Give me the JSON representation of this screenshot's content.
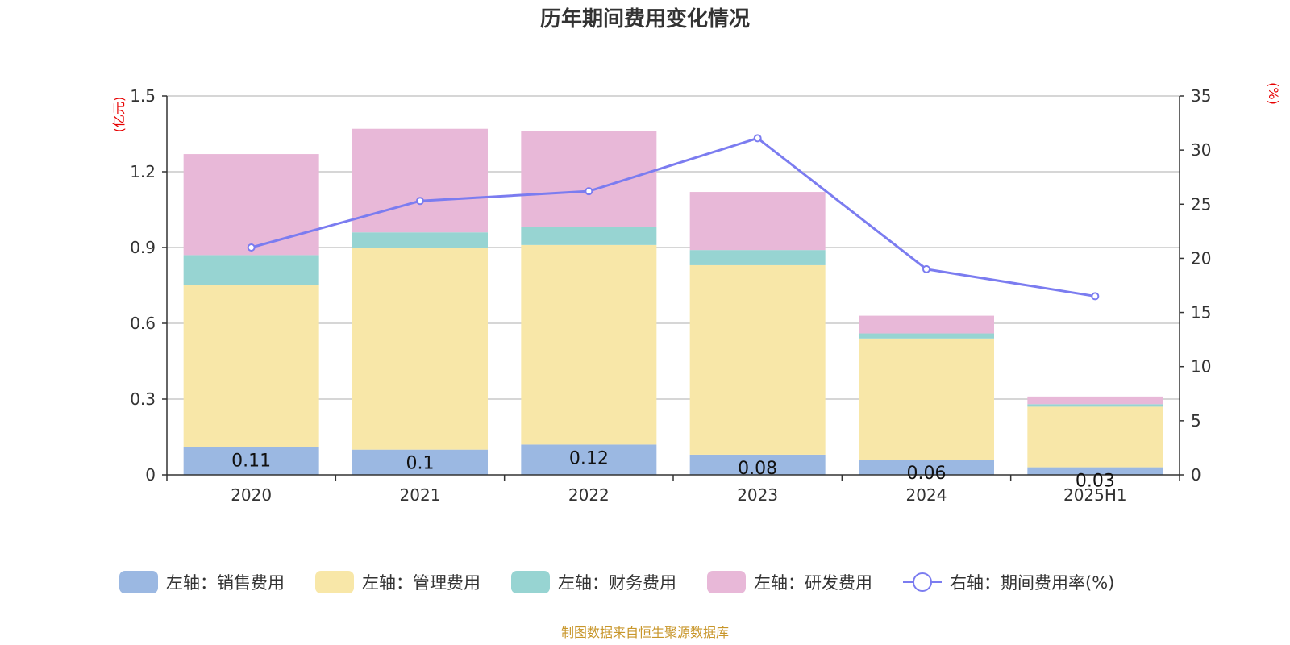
{
  "chart_data": {
    "type": "bar",
    "title": "历年期间费用变化情况",
    "categories": [
      "2020",
      "2021",
      "2022",
      "2023",
      "2024",
      "2025H1"
    ],
    "left_axis": {
      "unit": "(亿元)",
      "ylim": [
        0,
        1.5
      ],
      "ticks": [
        "0",
        "0.3",
        "0.6",
        "0.9",
        "1.2",
        "1.5"
      ]
    },
    "right_axis": {
      "unit": "(%)",
      "ylim": [
        0,
        35
      ],
      "ticks": [
        "0",
        "5",
        "10",
        "15",
        "20",
        "25",
        "30",
        "35"
      ]
    },
    "stacked": true,
    "series": [
      {
        "name": "左轴：销售费用",
        "color": "#9bb8e2",
        "values": [
          0.11,
          0.1,
          0.12,
          0.08,
          0.06,
          0.03
        ],
        "labels": [
          "0.11",
          "0.1",
          "0.12",
          "0.08",
          "0.06",
          "0.03"
        ]
      },
      {
        "name": "左轴：管理费用",
        "color": "#f8e7a8",
        "values": [
          0.64,
          0.8,
          0.79,
          0.75,
          0.48,
          0.24
        ]
      },
      {
        "name": "左轴：财务费用",
        "color": "#97d4d2",
        "values": [
          0.12,
          0.06,
          0.07,
          0.06,
          0.02,
          0.01
        ]
      },
      {
        "name": "左轴：研发费用",
        "color": "#e8b8d8",
        "values": [
          0.4,
          0.41,
          0.38,
          0.23,
          0.07,
          0.03
        ]
      }
    ],
    "line_series": {
      "name": "右轴：期间费用率(%)",
      "color": "#7b7cf0",
      "values": [
        21.0,
        25.3,
        26.2,
        31.1,
        19.0,
        16.5
      ]
    },
    "grid": true,
    "legend_position": "bottom"
  },
  "footer": {
    "source": "制图数据来自恒生聚源数据库"
  }
}
